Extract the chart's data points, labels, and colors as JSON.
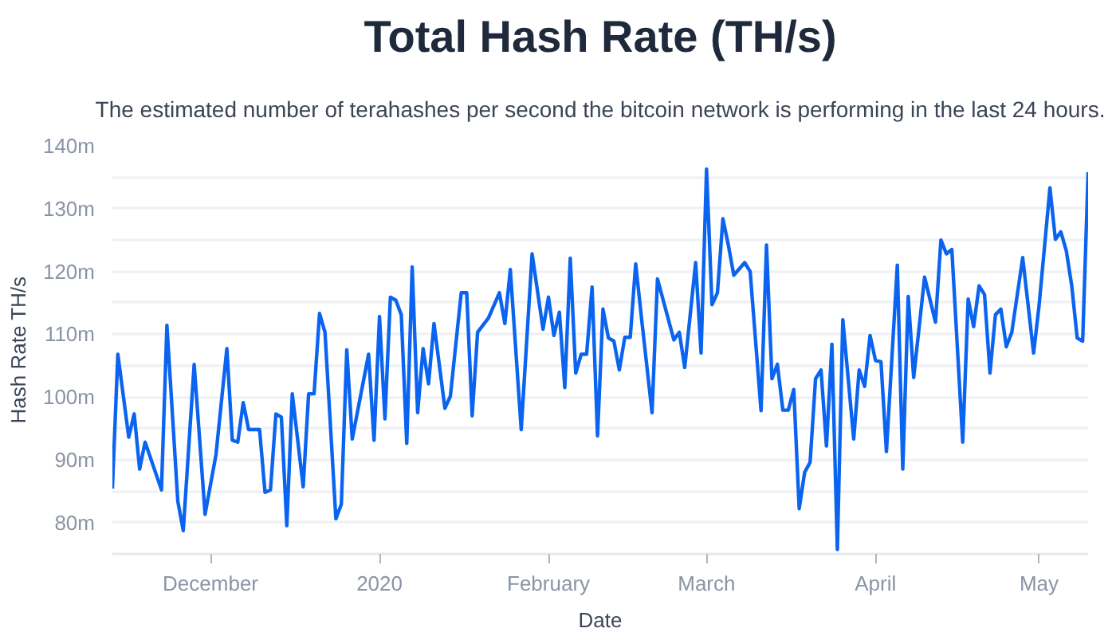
{
  "chart_data": {
    "type": "line",
    "title": "Total Hash Rate (TH/s)",
    "subtitle": "The estimated number of terahashes per second the bitcoin network is performing in the last 24 hours.",
    "xlabel": "Date",
    "ylabel": "Hash Rate TH/s",
    "x": [
      "2019-11-13",
      "2019-11-14",
      "2019-11-16",
      "2019-11-17",
      "2019-11-18",
      "2019-11-19",
      "2019-11-22",
      "2019-11-23",
      "2019-11-25",
      "2019-11-26",
      "2019-11-28",
      "2019-11-30",
      "2019-12-02",
      "2019-12-04",
      "2019-12-05",
      "2019-12-06",
      "2019-12-07",
      "2019-12-08",
      "2019-12-10",
      "2019-12-11",
      "2019-12-12",
      "2019-12-13",
      "2019-12-14",
      "2019-12-15",
      "2019-12-16",
      "2019-12-18",
      "2019-12-19",
      "2019-12-20",
      "2019-12-21",
      "2019-12-22",
      "2019-12-24",
      "2019-12-25",
      "2019-12-26",
      "2019-12-27",
      "2019-12-30",
      "2019-12-31",
      "2020-01-01",
      "2020-01-02",
      "2020-01-03",
      "2020-01-04",
      "2020-01-05",
      "2020-01-06",
      "2020-01-07",
      "2020-01-08",
      "2020-01-09",
      "2020-01-10",
      "2020-01-11",
      "2020-01-13",
      "2020-01-14",
      "2020-01-16",
      "2020-01-17",
      "2020-01-18",
      "2020-01-19",
      "2020-01-21",
      "2020-01-23",
      "2020-01-24",
      "2020-01-25",
      "2020-01-27",
      "2020-01-29",
      "2020-01-31",
      "2020-02-01",
      "2020-02-02",
      "2020-02-03",
      "2020-02-04",
      "2020-02-05",
      "2020-02-06",
      "2020-02-07",
      "2020-02-08",
      "2020-02-09",
      "2020-02-10",
      "2020-02-11",
      "2020-02-12",
      "2020-02-13",
      "2020-02-14",
      "2020-02-15",
      "2020-02-16",
      "2020-02-17",
      "2020-02-18",
      "2020-02-20",
      "2020-02-21",
      "2020-02-24",
      "2020-02-25",
      "2020-02-26",
      "2020-02-28",
      "2020-02-29",
      "2020-03-01",
      "2020-03-02",
      "2020-03-03",
      "2020-03-04",
      "2020-03-05",
      "2020-03-06",
      "2020-03-08",
      "2020-03-09",
      "2020-03-11",
      "2020-03-12",
      "2020-03-13",
      "2020-03-14",
      "2020-03-15",
      "2020-03-16",
      "2020-03-17",
      "2020-03-18",
      "2020-03-19",
      "2020-03-20",
      "2020-03-21",
      "2020-03-22",
      "2020-03-23",
      "2020-03-24",
      "2020-03-25",
      "2020-03-26",
      "2020-03-28",
      "2020-03-29",
      "2020-03-30",
      "2020-03-31",
      "2020-04-01",
      "2020-04-02",
      "2020-04-03",
      "2020-04-05",
      "2020-04-06",
      "2020-04-07",
      "2020-04-08",
      "2020-04-10",
      "2020-04-12",
      "2020-04-13",
      "2020-04-14",
      "2020-04-15",
      "2020-04-17",
      "2020-04-18",
      "2020-04-19",
      "2020-04-20",
      "2020-04-21",
      "2020-04-22",
      "2020-04-23",
      "2020-04-24",
      "2020-04-25",
      "2020-04-26",
      "2020-04-28",
      "2020-04-30",
      "2020-05-01",
      "2020-05-03",
      "2020-05-04",
      "2020-05-05",
      "2020-05-06",
      "2020-05-07",
      "2020-05-08",
      "2020-05-09",
      "2020-05-10"
    ],
    "series": [
      {
        "color": "#0a64f0",
        "values": [
          85.4,
          106.8,
          93.6,
          97.3,
          88.5,
          92.8,
          85.2,
          111.4,
          83.4,
          78.7,
          105.2,
          81.3,
          90.8,
          107.7,
          93.1,
          92.8,
          99.1,
          94.8,
          94.8,
          84.8,
          85.2,
          97.3,
          96.8,
          79.5,
          100.5,
          85.7,
          100.5,
          100.5,
          113.3,
          110.3,
          80.6,
          82.9,
          107.5,
          93.3,
          106.8,
          93.1,
          112.8,
          96.5,
          115.9,
          115.4,
          113.1,
          92.6,
          120.7,
          97.5,
          107.7,
          102.1,
          111.7,
          98.2,
          100.1,
          116.6,
          116.6,
          97.0,
          110.3,
          112.6,
          116.6,
          111.7,
          120.3,
          94.8,
          122.8,
          110.8,
          115.9,
          109.8,
          113.5,
          101.5,
          122.1,
          103.8,
          106.8,
          106.8,
          117.5,
          93.8,
          114.0,
          109.4,
          108.9,
          104.3,
          109.5,
          109.5,
          121.2,
          113.1,
          97.5,
          118.8,
          109.1,
          110.3,
          104.7,
          121.4,
          107.0,
          136.3,
          114.7,
          116.6,
          128.4,
          124.2,
          119.4,
          121.4,
          120.0,
          97.8,
          124.2,
          102.9,
          105.2,
          97.9,
          97.9,
          101.2,
          82.2,
          88.0,
          89.6,
          102.9,
          104.3,
          92.2,
          108.4,
          75.7,
          112.3,
          93.3,
          104.3,
          101.7,
          109.8,
          105.8,
          105.6,
          91.3,
          121.0,
          88.5,
          116.0,
          103.1,
          119.1,
          111.9,
          125.0,
          122.8,
          123.5,
          92.8,
          115.6,
          111.2,
          117.7,
          116.3,
          103.8,
          113.1,
          114.0,
          108.0,
          110.3,
          122.2,
          107.0,
          114.5,
          133.3,
          125.1,
          126.3,
          123.3,
          117.7,
          109.4,
          108.9,
          135.8
        ]
      }
    ],
    "xlim": [
      "2019-11-13",
      "2020-05-10"
    ],
    "xticks": [
      {
        "value": "2019-12-01",
        "label": "December"
      },
      {
        "value": "2020-01-01",
        "label": "2020"
      },
      {
        "value": "2020-02-01",
        "label": "February"
      },
      {
        "value": "2020-03-01",
        "label": "March"
      },
      {
        "value": "2020-04-01",
        "label": "April"
      },
      {
        "value": "2020-05-01",
        "label": "May"
      }
    ],
    "ylim": [
      75,
      140
    ],
    "yticks": [
      {
        "value": 80,
        "label": "80m"
      },
      {
        "value": 85,
        "label": null
      },
      {
        "value": 90,
        "label": "90m"
      },
      {
        "value": 95,
        "label": null
      },
      {
        "value": 100,
        "label": "100m"
      },
      {
        "value": 105,
        "label": null
      },
      {
        "value": 110,
        "label": "110m"
      },
      {
        "value": 115,
        "label": null
      },
      {
        "value": 120,
        "label": "120m"
      },
      {
        "value": 125,
        "label": null
      },
      {
        "value": 130,
        "label": "130m"
      },
      {
        "value": 135,
        "label": null
      },
      {
        "value": 140,
        "label": "140m"
      }
    ],
    "grid": "y",
    "marker": "none",
    "line_style": "solid"
  }
}
